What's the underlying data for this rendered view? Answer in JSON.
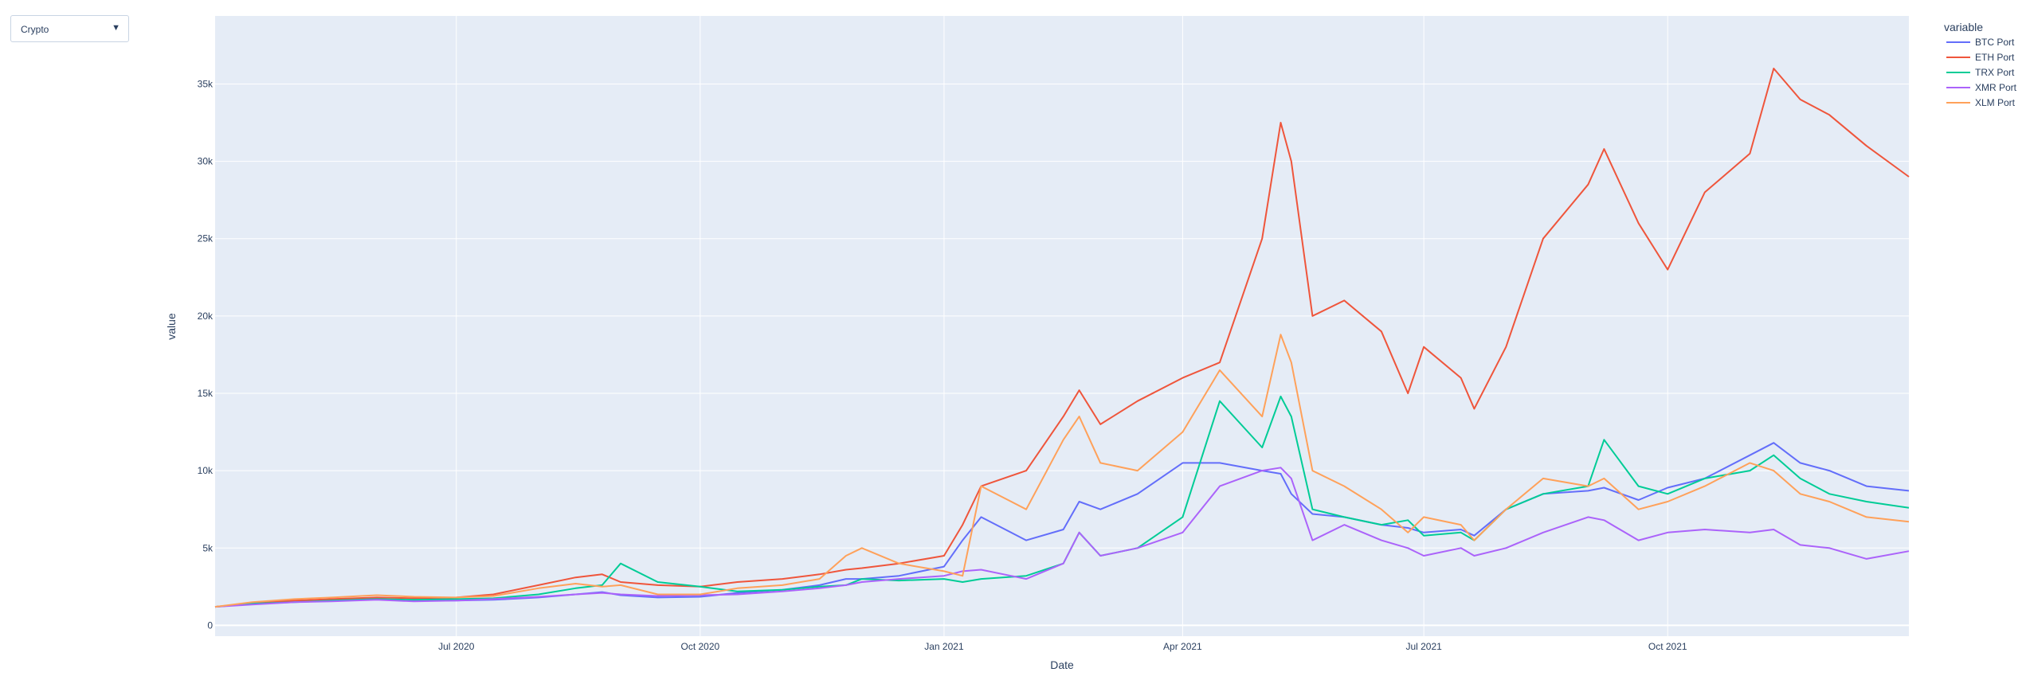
{
  "dropdown": {
    "selected": "Crypto"
  },
  "colors": {
    "plot_bg": "#e5ecf6",
    "grid": "#ffffff",
    "text": "#2a3f5f"
  },
  "chart_data": {
    "type": "line",
    "title": "",
    "xlabel": "Date",
    "ylabel": "value",
    "xlim": [
      "2020-04-01",
      "2021-12-31"
    ],
    "ylim": [
      -700,
      39400
    ],
    "grid": true,
    "legend": {
      "title": "variable",
      "position": "right"
    },
    "x_ticks": [
      {
        "date": "2020-07-01",
        "label": "Jul 2020"
      },
      {
        "date": "2020-10-01",
        "label": "Oct 2020"
      },
      {
        "date": "2021-01-01",
        "label": "Jan 2021"
      },
      {
        "date": "2021-04-01",
        "label": "Apr 2021"
      },
      {
        "date": "2021-07-01",
        "label": "Jul 2021"
      },
      {
        "date": "2021-10-01",
        "label": "Oct 2021"
      }
    ],
    "y_ticks": [
      {
        "value": 0,
        "label": "0"
      },
      {
        "value": 5000,
        "label": "5k"
      },
      {
        "value": 10000,
        "label": "10k"
      },
      {
        "value": 15000,
        "label": "15k"
      },
      {
        "value": 20000,
        "label": "20k"
      },
      {
        "value": 25000,
        "label": "25k"
      },
      {
        "value": 30000,
        "label": "30k"
      },
      {
        "value": 35000,
        "label": "35k"
      }
    ],
    "x": [
      "2020-04-01",
      "2020-04-15",
      "2020-05-01",
      "2020-05-15",
      "2020-06-01",
      "2020-06-15",
      "2020-07-01",
      "2020-07-15",
      "2020-08-01",
      "2020-08-15",
      "2020-08-25",
      "2020-09-01",
      "2020-09-15",
      "2020-10-01",
      "2020-10-15",
      "2020-11-01",
      "2020-11-15",
      "2020-11-25",
      "2020-12-01",
      "2020-12-15",
      "2021-01-01",
      "2021-01-08",
      "2021-01-15",
      "2021-02-01",
      "2021-02-15",
      "2021-02-21",
      "2021-03-01",
      "2021-03-15",
      "2021-04-01",
      "2021-04-15",
      "2021-05-01",
      "2021-05-08",
      "2021-05-12",
      "2021-05-20",
      "2021-06-01",
      "2021-06-15",
      "2021-06-25",
      "2021-07-01",
      "2021-07-15",
      "2021-07-20",
      "2021-08-01",
      "2021-08-15",
      "2021-09-01",
      "2021-09-07",
      "2021-09-20",
      "2021-10-01",
      "2021-10-15",
      "2021-11-01",
      "2021-11-10",
      "2021-11-20",
      "2021-12-01",
      "2021-12-15",
      "2021-12-31"
    ],
    "series": [
      {
        "name": "BTC Port",
        "color": "#636efa",
        "values": [
          1200,
          1450,
          1600,
          1650,
          1700,
          1600,
          1600,
          1650,
          1800,
          2000,
          2150,
          1950,
          1800,
          1850,
          2100,
          2300,
          2600,
          3000,
          3000,
          3200,
          3800,
          5500,
          7000,
          5500,
          6200,
          8000,
          7500,
          8500,
          10500,
          10500,
          10000,
          9800,
          8500,
          7200,
          7000,
          6500,
          6300,
          6000,
          6200,
          5800,
          7500,
          8500,
          8700,
          8900,
          8100,
          8900,
          9500,
          11000,
          11800,
          10500,
          10000,
          9000,
          8700
        ]
      },
      {
        "name": "ETH Port",
        "color": "#ef553b",
        "values": [
          1200,
          1400,
          1600,
          1700,
          1800,
          1750,
          1800,
          2000,
          2600,
          3100,
          3300,
          2800,
          2600,
          2500,
          2800,
          3000,
          3300,
          3600,
          3700,
          4000,
          4500,
          6500,
          9000,
          10000,
          13500,
          15200,
          13000,
          14500,
          16000,
          17000,
          25000,
          32500,
          30000,
          20000,
          21000,
          19000,
          15000,
          18000,
          16000,
          14000,
          18000,
          25000,
          28500,
          30800,
          26000,
          23000,
          28000,
          30500,
          36000,
          34000,
          33000,
          31000,
          29000
        ]
      },
      {
        "name": "TRX Port",
        "color": "#00cc96",
        "values": [
          1200,
          1400,
          1500,
          1600,
          1700,
          1650,
          1700,
          1750,
          2000,
          2400,
          2600,
          4000,
          2800,
          2500,
          2200,
          2300,
          2500,
          2600,
          3000,
          2900,
          3000,
          2800,
          3000,
          3200,
          4000,
          6000,
          4500,
          5000,
          7000,
          14500,
          11500,
          14800,
          13500,
          7500,
          7000,
          6500,
          6800,
          5800,
          6000,
          5500,
          7500,
          8500,
          9000,
          12000,
          9000,
          8500,
          9500,
          10000,
          11000,
          9500,
          8500,
          8000,
          7600
        ]
      },
      {
        "name": "XMR Port",
        "color": "#ab63fa",
        "values": [
          1200,
          1350,
          1500,
          1550,
          1650,
          1550,
          1600,
          1700,
          1850,
          2000,
          2100,
          2000,
          1900,
          1950,
          2000,
          2200,
          2400,
          2600,
          2800,
          3000,
          3200,
          3500,
          3600,
          3000,
          4000,
          6000,
          4500,
          5000,
          6000,
          9000,
          10000,
          10200,
          9500,
          5500,
          6500,
          5500,
          5000,
          4500,
          5000,
          4500,
          5000,
          6000,
          7000,
          6800,
          5500,
          6000,
          6200,
          6000,
          6200,
          5200,
          5000,
          4300,
          4800
        ]
      },
      {
        "name": "XLM Port",
        "color": "#ffa15a",
        "values": [
          1200,
          1500,
          1700,
          1800,
          1950,
          1850,
          1800,
          1900,
          2400,
          2700,
          2500,
          2600,
          2000,
          2000,
          2400,
          2600,
          3000,
          4500,
          5000,
          4000,
          3500,
          3200,
          9000,
          7500,
          12000,
          13500,
          10500,
          10000,
          12500,
          16500,
          13500,
          18800,
          17000,
          10000,
          9000,
          7500,
          6000,
          7000,
          6500,
          5500,
          7500,
          9500,
          9000,
          9500,
          7500,
          8000,
          9000,
          10500,
          10000,
          8500,
          8000,
          7000,
          6700
        ]
      }
    ]
  }
}
